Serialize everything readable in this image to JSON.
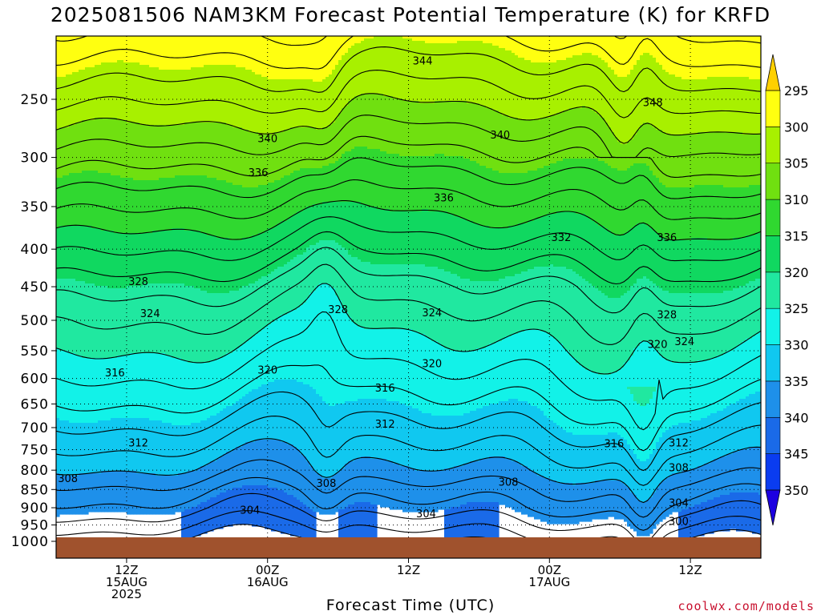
{
  "header": {
    "title": "2025081506 NAM3KM Forecast Potential Temperature (K) for KRFD"
  },
  "footer": {
    "xlabel": "Forecast Time (UTC)",
    "credit": "coolwx.com/models"
  },
  "colors": {
    "ground": "#a0522d",
    "bands": [
      "#1d00e0",
      "#0a3cf0",
      "#1a6ae8",
      "#1e90ea",
      "#10c8f0",
      "#12f2e8",
      "#20e8a0",
      "#10d860",
      "#30d830",
      "#70e010",
      "#a8f000",
      "#ffff10",
      "#ffd000"
    ]
  },
  "chart_data": {
    "type": "heatmap",
    "title": "2025081506 NAM3KM Forecast Potential Temperature (K) for KRFD",
    "xlabel": "Forecast Time (UTC)",
    "ylabel": "",
    "y_axis": {
      "ticks": [
        250,
        300,
        350,
        400,
        450,
        500,
        550,
        600,
        650,
        700,
        750,
        800,
        850,
        900,
        950,
        1000
      ],
      "scale": "log-pressure",
      "range": [
        200,
        1000
      ]
    },
    "x_axis": {
      "range_hours": [
        0,
        60
      ],
      "ticks": [
        {
          "hour": 6,
          "lines": [
            "12Z",
            "15AUG",
            "2025"
          ]
        },
        {
          "hour": 18,
          "lines": [
            "00Z",
            "16AUG"
          ]
        },
        {
          "hour": 30,
          "lines": [
            "12Z"
          ]
        },
        {
          "hour": 42,
          "lines": [
            "00Z",
            "17AUG"
          ]
        },
        {
          "hour": 54,
          "lines": [
            "12Z"
          ]
        }
      ]
    },
    "colorbar": {
      "ticks": [
        295,
        300,
        305,
        310,
        315,
        320,
        325,
        330,
        335,
        340,
        345,
        350
      ]
    },
    "levels": [
      300,
      302,
      304,
      306,
      308,
      310,
      312,
      314,
      316,
      318,
      320,
      322,
      324,
      326,
      328,
      330,
      332,
      334,
      336,
      338,
      340,
      342,
      344,
      346,
      348
    ],
    "sounding_pressure": [
      1000,
      950,
      900,
      850,
      800,
      750,
      700,
      650,
      600,
      550,
      500,
      450,
      400,
      350,
      300,
      250,
      200
    ],
    "sounding_theta": [
      300,
      302.5,
      305,
      307,
      309.5,
      311.5,
      313.5,
      315.5,
      317.5,
      319.5,
      321.5,
      324,
      327.5,
      331.5,
      336,
      341.5,
      347.5
    ],
    "contour_labels": [
      {
        "text": "344",
        "hour": 31.2,
        "p": 222
      },
      {
        "text": "348",
        "hour": 50.8,
        "p": 253
      },
      {
        "text": "340",
        "hour": 18.0,
        "p": 283
      },
      {
        "text": "340",
        "hour": 37.8,
        "p": 280
      },
      {
        "text": "336",
        "hour": 17.2,
        "p": 315
      },
      {
        "text": "336",
        "hour": 33.0,
        "p": 341
      },
      {
        "text": "332",
        "hour": 43.0,
        "p": 386
      },
      {
        "text": "336",
        "hour": 52.0,
        "p": 386
      },
      {
        "text": "328",
        "hour": 7.0,
        "p": 443
      },
      {
        "text": "328",
        "hour": 24.0,
        "p": 484
      },
      {
        "text": "324",
        "hour": 8.0,
        "p": 490
      },
      {
        "text": "324",
        "hour": 32.0,
        "p": 489
      },
      {
        "text": "328",
        "hour": 52.0,
        "p": 492
      },
      {
        "text": "320",
        "hour": 51.2,
        "p": 540
      },
      {
        "text": "324",
        "hour": 53.5,
        "p": 535
      },
      {
        "text": "320",
        "hour": 18.0,
        "p": 585
      },
      {
        "text": "320",
        "hour": 32.0,
        "p": 573
      },
      {
        "text": "316",
        "hour": 5.0,
        "p": 590
      },
      {
        "text": "316",
        "hour": 28.0,
        "p": 619
      },
      {
        "text": "312",
        "hour": 28.0,
        "p": 693
      },
      {
        "text": "312",
        "hour": 7.0,
        "p": 735
      },
      {
        "text": "316",
        "hour": 47.5,
        "p": 737
      },
      {
        "text": "312",
        "hour": 53.0,
        "p": 735
      },
      {
        "text": "308",
        "hour": 53.0,
        "p": 795
      },
      {
        "text": "308",
        "hour": 1.0,
        "p": 822
      },
      {
        "text": "308",
        "hour": 23.0,
        "p": 835
      },
      {
        "text": "308",
        "hour": 38.5,
        "p": 831
      },
      {
        "text": "304",
        "hour": 16.5,
        "p": 908
      },
      {
        "text": "304",
        "hour": 31.5,
        "p": 918
      },
      {
        "text": "304",
        "hour": 53.0,
        "p": 887
      },
      {
        "text": "300",
        "hour": 53.0,
        "p": 940
      }
    ]
  }
}
